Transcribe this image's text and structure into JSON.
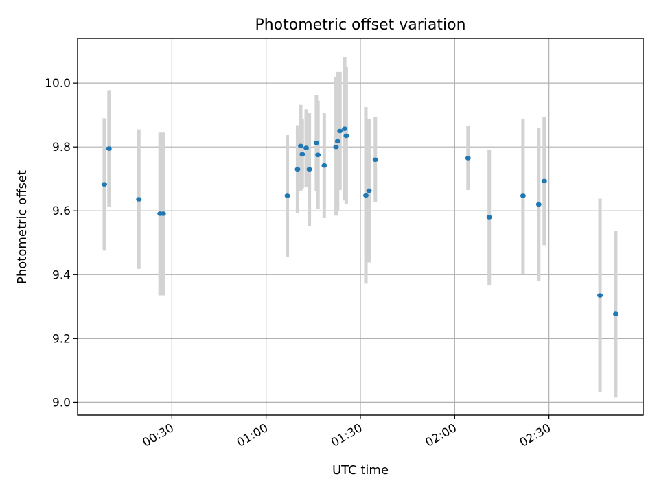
{
  "chart_data": {
    "type": "scatter",
    "title": "Photometric offset variation",
    "xlabel": "UTC time",
    "ylabel": "Photometric offset",
    "x_unit": "UTC",
    "xlim": [
      "00:00",
      "03:00"
    ],
    "ylim": [
      8.96,
      10.14
    ],
    "x_ticks": [
      "00:30",
      "01:00",
      "01:30",
      "02:00",
      "02:30"
    ],
    "y_ticks": [
      "9.0",
      "9.2",
      "9.4",
      "9.6",
      "9.8",
      "10.0"
    ],
    "grid": true,
    "colors": {
      "point": "#1f77b4",
      "errorbar": "#d3d3d3",
      "grid": "#b0b0b0"
    },
    "series": [
      {
        "points": [
          {
            "x": "00:08:30",
            "y": 9.683,
            "ylow": 9.475,
            "yhigh": 9.89
          },
          {
            "x": "00:10:00",
            "y": 9.795,
            "ylow": 9.612,
            "yhigh": 9.978
          },
          {
            "x": "00:19:30",
            "y": 9.636,
            "ylow": 9.418,
            "yhigh": 9.855
          },
          {
            "x": "00:26:15",
            "y": 9.591,
            "ylow": 9.335,
            "yhigh": 9.845
          },
          {
            "x": "00:27:15",
            "y": 9.591,
            "ylow": 9.335,
            "yhigh": 9.845
          },
          {
            "x": "01:06:45",
            "y": 9.647,
            "ylow": 9.455,
            "yhigh": 9.837
          },
          {
            "x": "01:10:00",
            "y": 9.73,
            "ylow": 9.592,
            "yhigh": 9.868
          },
          {
            "x": "01:11:00",
            "y": 9.803,
            "ylow": 9.662,
            "yhigh": 9.932
          },
          {
            "x": "01:11:30",
            "y": 9.777,
            "ylow": 9.67,
            "yhigh": 9.888
          },
          {
            "x": "01:12:45",
            "y": 9.797,
            "ylow": 9.675,
            "yhigh": 9.918
          },
          {
            "x": "01:13:45",
            "y": 9.73,
            "ylow": 9.552,
            "yhigh": 9.908
          },
          {
            "x": "01:16:00",
            "y": 9.813,
            "ylow": 9.662,
            "yhigh": 9.962
          },
          {
            "x": "01:16:30",
            "y": 9.775,
            "ylow": 9.605,
            "yhigh": 9.945
          },
          {
            "x": "01:18:30",
            "y": 9.742,
            "ylow": 9.577,
            "yhigh": 9.907
          },
          {
            "x": "01:22:15",
            "y": 9.8,
            "ylow": 9.585,
            "yhigh": 10.02
          },
          {
            "x": "01:22:45",
            "y": 9.818,
            "ylow": 9.6,
            "yhigh": 10.035
          },
          {
            "x": "01:23:30",
            "y": 9.85,
            "ylow": 9.665,
            "yhigh": 10.035
          },
          {
            "x": "01:25:00",
            "y": 9.857,
            "ylow": 9.632,
            "yhigh": 10.082
          },
          {
            "x": "01:25:30",
            "y": 9.835,
            "ylow": 9.62,
            "yhigh": 10.05
          },
          {
            "x": "01:31:45",
            "y": 9.648,
            "ylow": 9.372,
            "yhigh": 9.925
          },
          {
            "x": "01:32:45",
            "y": 9.663,
            "ylow": 9.438,
            "yhigh": 9.888
          },
          {
            "x": "01:34:45",
            "y": 9.76,
            "ylow": 9.628,
            "yhigh": 9.893
          },
          {
            "x": "02:04:15",
            "y": 9.765,
            "ylow": 9.665,
            "yhigh": 9.865
          },
          {
            "x": "02:11:00",
            "y": 9.58,
            "ylow": 9.368,
            "yhigh": 9.792
          },
          {
            "x": "02:21:45",
            "y": 9.647,
            "ylow": 9.402,
            "yhigh": 9.888
          },
          {
            "x": "02:26:45",
            "y": 9.62,
            "ylow": 9.38,
            "yhigh": 9.86
          },
          {
            "x": "02:28:30",
            "y": 9.693,
            "ylow": 9.492,
            "yhigh": 9.895
          },
          {
            "x": "02:46:15",
            "y": 9.335,
            "ylow": 9.032,
            "yhigh": 9.638
          },
          {
            "x": "02:51:15",
            "y": 9.277,
            "ylow": 9.015,
            "yhigh": 9.538
          }
        ]
      }
    ]
  }
}
